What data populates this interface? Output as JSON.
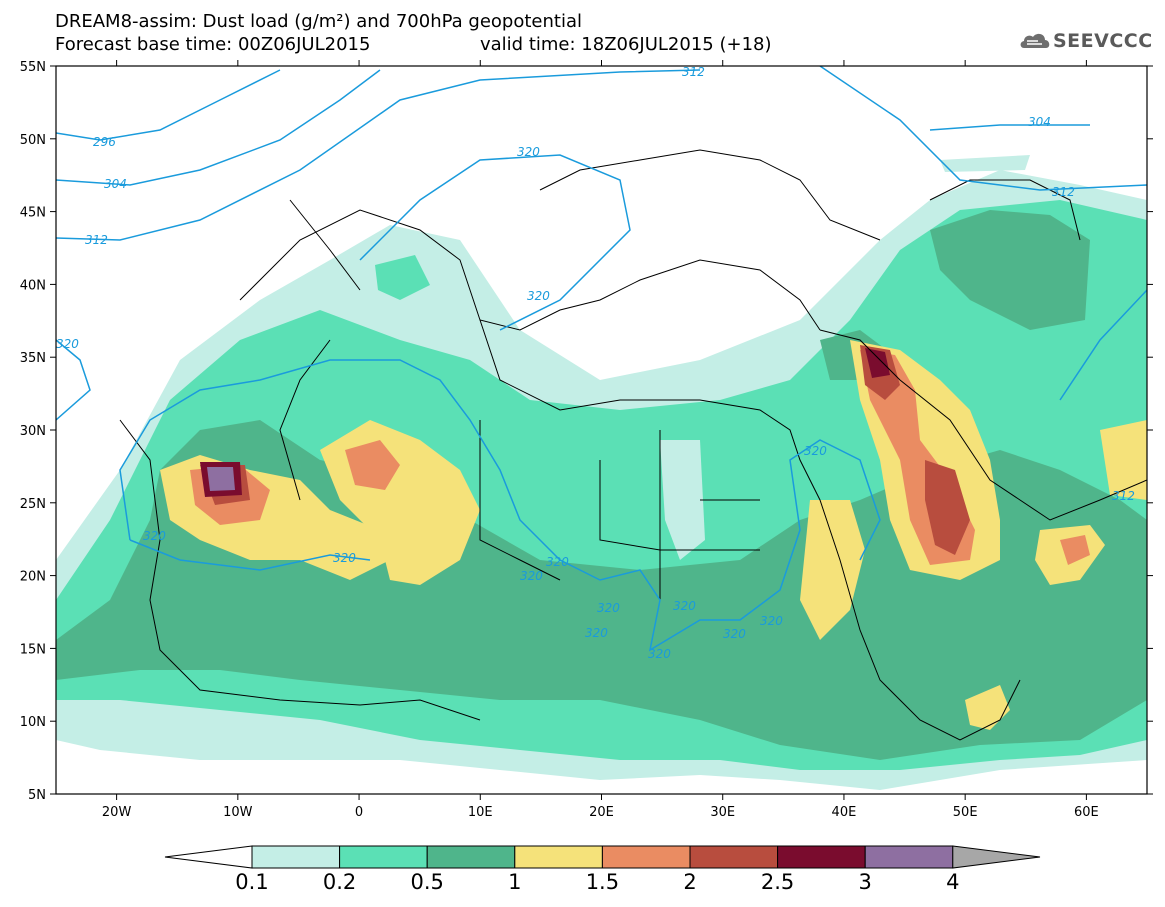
{
  "title": {
    "line1": "DREAM8-assim: Dust load (g/m²) and 700hPa geopotential",
    "line2_left": "Forecast base time: 00Z06JUL2015",
    "line2_right": "valid time: 18Z06JUL2015 (+18)"
  },
  "logo": {
    "text": "SEEVCCC",
    "icon": "cloud-icon"
  },
  "axes": {
    "lat_labels": [
      "55N",
      "50N",
      "45N",
      "40N",
      "35N",
      "30N",
      "25N",
      "20N",
      "15N",
      "10N",
      "5N"
    ],
    "lon_labels": [
      "20W",
      "10W",
      "0",
      "10E",
      "20E",
      "30E",
      "40E",
      "50E",
      "60E"
    ],
    "lat_range": [
      5,
      55
    ],
    "lon_range": [
      -25,
      65
    ]
  },
  "colorbar": {
    "levels": [
      "0.1",
      "0.2",
      "0.5",
      "1",
      "1.5",
      "2",
      "2.5",
      "3",
      "4"
    ],
    "colors": [
      "#ffffff",
      "#c4eee6",
      "#5be0b5",
      "#4fb58b",
      "#f5e27a",
      "#ea8c62",
      "#b84d3e",
      "#7a0c2e",
      "#8e6fa1",
      "#a7a7a7"
    ]
  },
  "contours": {
    "color": "#1a9bdc",
    "labels": [
      "312",
      "296",
      "304",
      "312",
      "320",
      "304",
      "312",
      "320",
      "320",
      "320",
      "320",
      "320",
      "320",
      "320",
      "320",
      "320",
      "320",
      "320",
      "320",
      "312",
      "320"
    ]
  }
}
